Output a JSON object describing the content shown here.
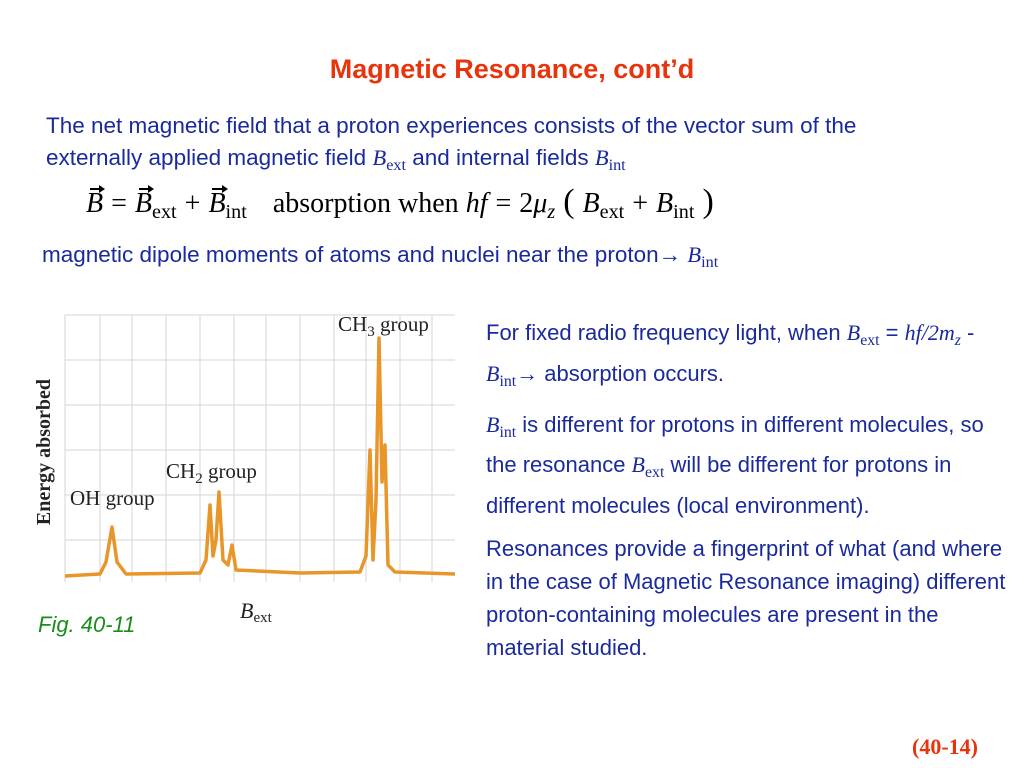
{
  "header": {
    "title": "Magnetic Resonance, cont’d"
  },
  "intro": [
    "The net magnetic field that a proton experiences consists of the vector sum of the externally applied magnetic field ",
    "B",
    "ext",
    " and internal fields ",
    "B",
    "int"
  ],
  "equation": {
    "left": [
      "B",
      "=",
      "B",
      "ext",
      "+",
      "B",
      "int"
    ],
    "right": [
      "absorption when ",
      "hf",
      "=",
      "2",
      "μ",
      "z",
      "(",
      "B",
      "ext",
      "+",
      "B",
      "int",
      ")"
    ]
  },
  "dipole": [
    "magnetic dipole moments of atoms and nuclei near the proton→ ",
    "B",
    "int"
  ],
  "figure": {
    "y_label": "Energy absorbed",
    "x_label": [
      "B",
      "ext"
    ],
    "peak_labels": [
      [
        "CH",
        "3",
        " group"
      ],
      [
        "CH",
        "2",
        " group"
      ],
      [
        "OH group"
      ]
    ],
    "caption": "Fig. 40-11"
  },
  "notes": [
    [
      "For fixed radio frequency light, when ",
      "B",
      "ext",
      " = ",
      "hf/2m",
      "z",
      " - ",
      "B",
      "int",
      "→ absorption occurs."
    ],
    [
      "B",
      "int",
      " is different for protons in different molecules, so the resonance ",
      "B",
      "ext",
      " will be different for protons in different molecules (local environment)."
    ],
    [
      "Resonances provide a fingerprint of what (and where in the case of Magnetic Resonance imaging) different proton-containing molecules are present in the material studied."
    ]
  ],
  "footer": {
    "page": "(40-14)"
  }
}
